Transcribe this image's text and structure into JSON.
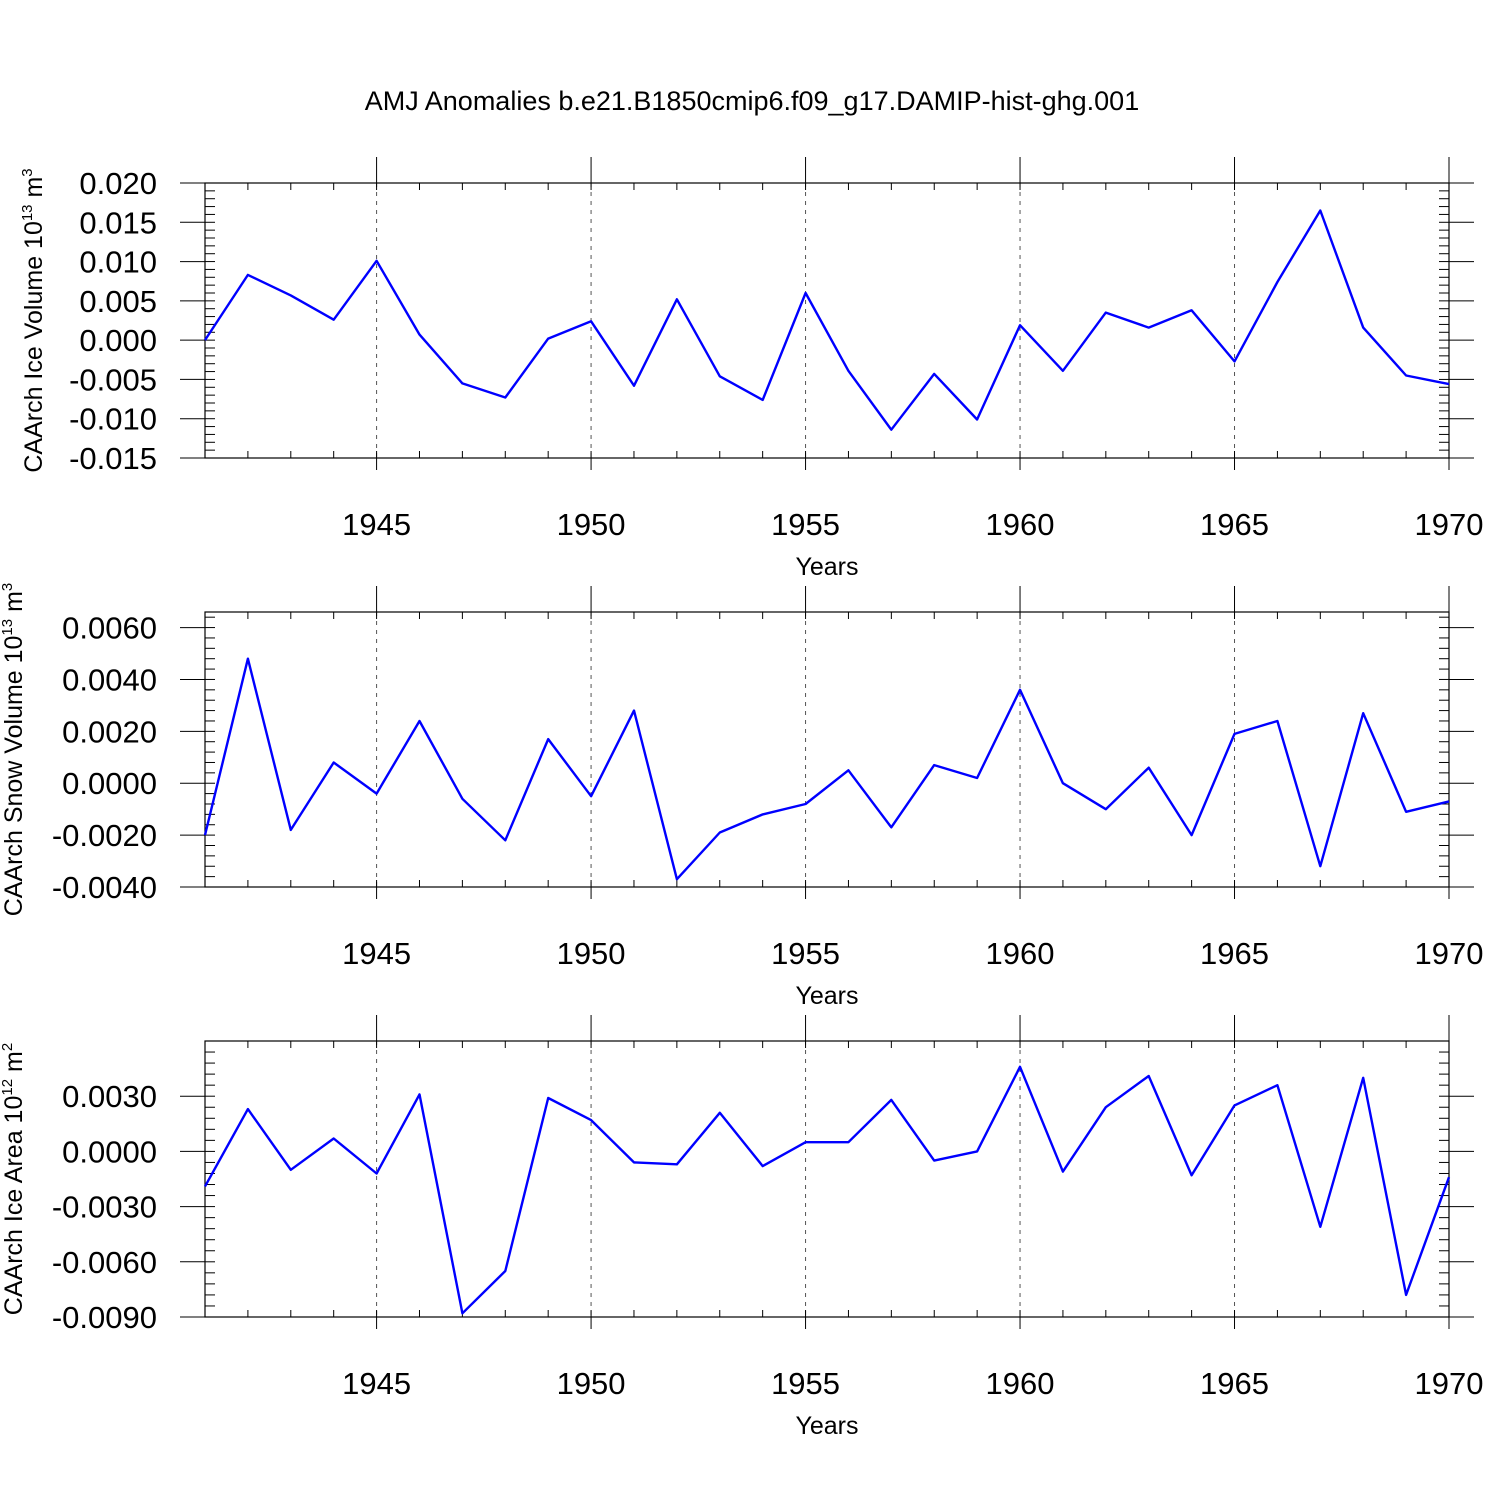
{
  "chart_data": {
    "title": "AMJ Anomalies b.e21.B1850cmip6.f09_g17.DAMIP-hist-ghg.001",
    "type": "line",
    "color": "#0000ff",
    "x": [
      1941,
      1942,
      1943,
      1944,
      1945,
      1946,
      1947,
      1948,
      1949,
      1950,
      1951,
      1952,
      1953,
      1954,
      1955,
      1956,
      1957,
      1958,
      1959,
      1960,
      1961,
      1962,
      1963,
      1964,
      1965,
      1966,
      1967,
      1968,
      1969,
      1970
    ],
    "xlim": [
      1941,
      1970
    ],
    "xtick_values": [
      1945,
      1950,
      1955,
      1960,
      1965,
      1970
    ],
    "xtick_labels": [
      "1945",
      "1950",
      "1955",
      "1960",
      "1965",
      "1970"
    ],
    "panels": [
      {
        "ylabel": "CAArch Ice Volume 10",
        "ylabel_exp": "13",
        "ylabel_unit": " m",
        "ylabel_unit_exp": "3",
        "xlabel": "Years",
        "ylim": [
          -0.015,
          0.02
        ],
        "ytick_values": [
          0.02,
          0.015,
          0.01,
          0.005,
          0.0,
          -0.005,
          -0.01,
          -0.015
        ],
        "ytick_labels": [
          "0.020",
          "0.015",
          "0.010",
          "0.005",
          "0.000",
          "-0.005",
          "-0.010",
          "-0.015"
        ],
        "values": [
          0.0,
          0.0083,
          0.0057,
          0.0026,
          0.0101,
          0.0007,
          -0.0055,
          -0.0073,
          0.0002,
          0.0024,
          -0.0058,
          0.0052,
          -0.0046,
          -0.0076,
          0.006,
          -0.0039,
          -0.0114,
          -0.0043,
          -0.0101,
          0.0019,
          -0.0039,
          0.0035,
          0.0016,
          0.0038,
          -0.0027,
          0.0074,
          0.0165,
          0.0016,
          -0.0045,
          -0.0056
        ]
      },
      {
        "ylabel": "CAArch Snow Volume 10",
        "ylabel_exp": "13",
        "ylabel_unit": " m",
        "ylabel_unit_exp": "3",
        "xlabel": "Years",
        "ylim": [
          -0.004,
          0.0066
        ],
        "ytick_values": [
          0.006,
          0.004,
          0.002,
          0.0,
          -0.002,
          -0.004
        ],
        "ytick_labels": [
          "0.0060",
          "0.0040",
          "0.0020",
          "0.0000",
          "-0.0020",
          "-0.0040"
        ],
        "values": [
          -0.002,
          0.0048,
          -0.0018,
          0.0008,
          -0.0004,
          0.0024,
          -0.0006,
          -0.0022,
          0.0017,
          -0.0005,
          0.0028,
          -0.0037,
          -0.0019,
          -0.0012,
          -0.0008,
          0.0005,
          -0.0017,
          0.0007,
          0.0002,
          0.0036,
          0.0,
          -0.001,
          0.0006,
          -0.002,
          0.0019,
          0.0024,
          -0.0032,
          0.0027,
          -0.0011,
          -0.0007
        ]
      },
      {
        "ylabel": "CAArch Ice Area 10",
        "ylabel_exp": "12",
        "ylabel_unit": " m",
        "ylabel_unit_exp": "2",
        "xlabel": "Years",
        "ylim": [
          -0.009,
          0.006
        ],
        "ytick_values": [
          0.003,
          0.0,
          -0.003,
          -0.006,
          -0.009
        ],
        "ytick_labels": [
          "0.0030",
          "0.0000",
          "-0.0030",
          "-0.0060",
          "-0.0090"
        ],
        "values": [
          -0.0019,
          0.0023,
          -0.001,
          0.0007,
          -0.0012,
          0.0031,
          -0.0088,
          -0.0065,
          0.0029,
          0.0017,
          -0.0006,
          -0.0007,
          0.0021,
          -0.0008,
          0.0005,
          0.0005,
          0.0028,
          -0.0005,
          0.0,
          0.0046,
          -0.0011,
          0.0024,
          0.0041,
          -0.0013,
          0.0025,
          0.0036,
          -0.0041,
          0.004,
          -0.0078,
          -0.0014
        ]
      }
    ]
  }
}
